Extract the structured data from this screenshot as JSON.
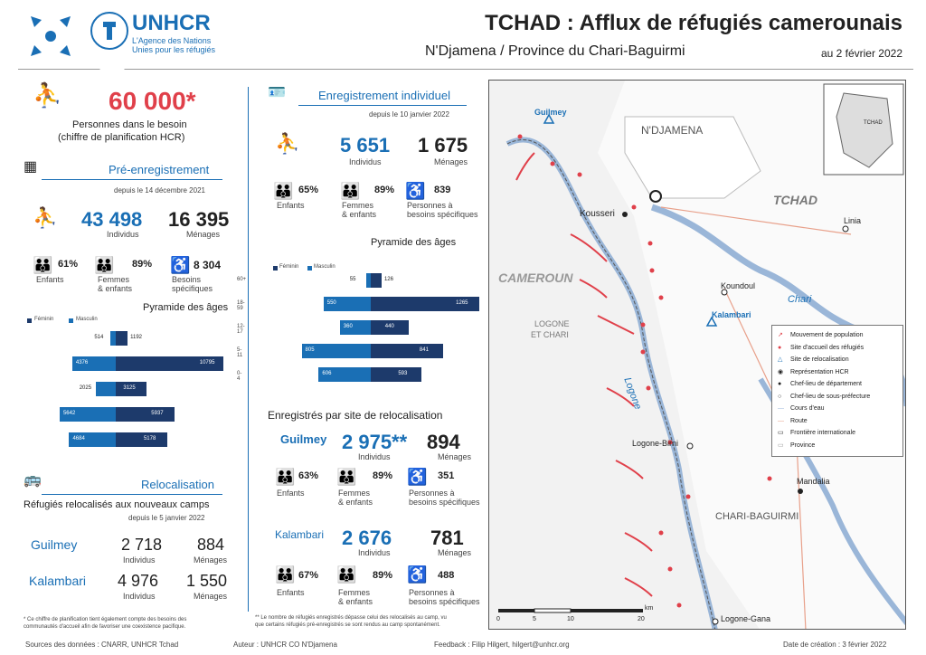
{
  "header": {
    "org": "UNHCR",
    "org_sub1": "L'Agence des Nations",
    "org_sub2": "Unies pour les réfugiés",
    "title": "TCHAD : Afflux de réfugiés camerounais",
    "subtitle": "N'Djamena / Province du Chari-Baguirmi",
    "date": "au 2 février 2022"
  },
  "left": {
    "need_value": "60 000*",
    "need_l1": "Personnes dans le besoin",
    "need_l2": "(chiffre de planification HCR)",
    "pre_title": "Pré-enregistrement",
    "pre_date": "depuis le 14 décembre 2021",
    "pre_ind": "43 498",
    "pre_ind_l": "Individus",
    "pre_men": "16 395",
    "pre_men_l": "Ménages",
    "pre_enf": "61%",
    "pre_enf_l": "Enfants",
    "pre_fem": "89%",
    "pre_fem_l1": "Femmes",
    "pre_fem_l2": "& enfants",
    "pre_bs": "8 304",
    "pre_bs_l1": "Besoins",
    "pre_bs_l2": "spécifiques",
    "pyr_title": "Pyramide des âges",
    "leg_f": "Féminin",
    "leg_m": "Masculin",
    "pyr": [
      {
        "age": "60+",
        "m": "514",
        "f": "1192"
      },
      {
        "age": "18-59",
        "m": "4376",
        "f": "10795"
      },
      {
        "age": "12-17",
        "m": "2025",
        "f": "3125"
      },
      {
        "age": "5-11",
        "m": "5642",
        "f": "5937"
      },
      {
        "age": "0-4",
        "m": "4684",
        "f": "5178"
      }
    ],
    "rel_title": "Relocalisation",
    "rel_l1": "Réfugiés relocalisés aux nouveaux camps",
    "rel_date": "depuis le 5 janvier 2022",
    "g_name": "Guilmey",
    "g_ind": "2 718",
    "g_men": "884",
    "k_name": "Kalambari",
    "k_ind": "4 976",
    "k_men": "1 550",
    "ind_l": "Individus",
    "men_l": "Ménages",
    "note1": "* Ce chiffre de planification tient également compte des besoins des",
    "note2": "communautés d'accueil afin de favoriser une coexistence pacifique."
  },
  "mid": {
    "ei_title": "Enregistrement individuel",
    "ei_date": "depuis le 10 janvier 2022",
    "ei_ind": "5 651",
    "ei_ind_l": "Individus",
    "ei_men": "1 675",
    "ei_men_l": "Ménages",
    "ei_enf": "65%",
    "ei_enf_l": "Enfants",
    "ei_fem": "89%",
    "ei_fem_l1": "Femmes",
    "ei_fem_l2": "& enfants",
    "ei_bs": "839",
    "ei_bs_l1": "Personnes à",
    "ei_bs_l2": "besoins spécifiques",
    "pyr_title": "Pyramide des âges",
    "leg_f": "Féminin",
    "leg_m": "Masculin",
    "pyr": [
      {
        "age": "60+",
        "m": "55",
        "f": "126"
      },
      {
        "age": "18-59",
        "m": "550",
        "f": "1265"
      },
      {
        "age": "12-17",
        "m": "360",
        "f": "440"
      },
      {
        "age": "5-11",
        "m": "805",
        "f": "841"
      },
      {
        "age": "0-4",
        "m": "606",
        "f": "593"
      }
    ],
    "site_title": "Enregistrés par site de relocalisation",
    "g_name": "Guilmey",
    "g_ind": "2 975**",
    "g_men": "894",
    "g_enf": "63%",
    "g_fem": "89%",
    "g_bs": "351",
    "k_name": "Kalambari",
    "k_ind": "2 676",
    "k_men": "781",
    "k_enf": "67%",
    "k_fem": "89%",
    "k_bs": "488",
    "ind_l": "Individus",
    "men_l": "Ménages",
    "enf_l": "Enfants",
    "fem_l1": "Femmes",
    "fem_l2": "& enfants",
    "bs_l1": "Personnes à",
    "bs_l2": "besoins spécifiques",
    "note1": "** Le nombre de réfugiés enregistrés dépasse celui des relocalisés au camp, vu",
    "note2": "que certains réfugiés pré-enregistrés se sont rendus au camp spontanément."
  },
  "map": {
    "ndjamena": "N'DJAMENA",
    "tchad": "TCHAD",
    "cameroun": "CAMEROUN",
    "logone_chari1": "LOGONE",
    "logone_chari2": "ET CHARI",
    "chari_bag": "CHARI-BAGUIRMI",
    "kousseri": "Kousseri",
    "linia": "Linia",
    "koundoul": "Koundoul",
    "chari": "Chari",
    "kalambari": "Kalambari",
    "guilmey": "Guilmey",
    "logone": "Logone",
    "logone_birni": "Logone-Birni",
    "mandalia": "Mandalia",
    "logone_gana": "Logone-Gana",
    "legend": [
      "Mouvement de population",
      "Site d'accueil des réfugiés",
      "Site de relocalisation",
      "Représentation HCR",
      "Chef-lieu de département",
      "Chef-lieu de sous-préfecture",
      "Cours d'eau",
      "Route",
      "Frontière internationale",
      "Province"
    ],
    "scale_unit": "km",
    "scale": [
      "0",
      "5",
      "10",
      "20"
    ],
    "inset": "TCHAD"
  },
  "footer": {
    "src": "Sources des données : CNARR, UNHCR Tchad",
    "author": "Auteur : UNHCR CO N'Djamena",
    "feedback": "Feedback : Filip Hilgert, hilgert@unhcr.org",
    "created": "Date de création : 3 février 2022"
  }
}
